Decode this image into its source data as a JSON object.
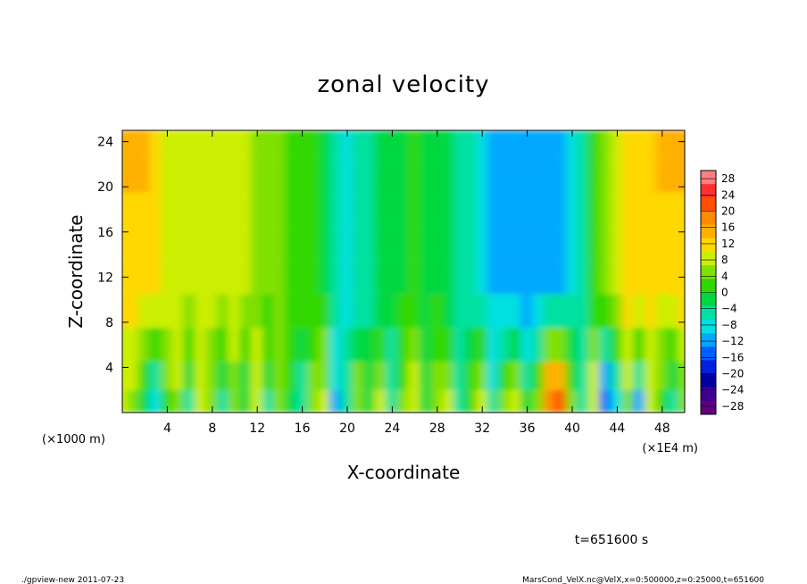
{
  "footer": {
    "left": "./gpview-new   2011-07-23",
    "right": "MarsCond_VelX.nc@VelX,x=0:500000,z=0:25000,t=651600"
  },
  "time_label": "t=651600 s",
  "chart_data": {
    "type": "heatmap",
    "title": "zonal velocity",
    "xlabel": "X-coordinate",
    "ylabel": "Z-coordinate",
    "x_unit_left": "(×1000 m)",
    "x_unit_right": "(×1E4 m)",
    "xlim": [
      0,
      50
    ],
    "ylim": [
      0,
      25
    ],
    "x_ticks": [
      4,
      8,
      12,
      16,
      20,
      24,
      28,
      32,
      36,
      40,
      44,
      48
    ],
    "y_ticks": [
      4,
      8,
      12,
      16,
      20,
      24
    ],
    "colorbar": {
      "levels": [
        28,
        24,
        20,
        16,
        12,
        8,
        4,
        0,
        -4,
        -8,
        -12,
        -16,
        -20,
        -24,
        -28
      ],
      "range": [
        -30,
        30
      ],
      "colors_high_to_low": [
        "#ff8080",
        "#ff3030",
        "#ff5000",
        "#ff8c00",
        "#ffb000",
        "#ffd800",
        "#ccee00",
        "#80e000",
        "#30d800",
        "#00d840",
        "#00e0a0",
        "#00e0e0",
        "#00a8ff",
        "#0060ff",
        "#0020e0",
        "#0000a0",
        "#400090",
        "#600080"
      ]
    },
    "x_samples": [
      0,
      1,
      2,
      3,
      4,
      5,
      6,
      7,
      8,
      9,
      10,
      11,
      12,
      13,
      14,
      15,
      16,
      17,
      18,
      19,
      20,
      21,
      22,
      23,
      24,
      25,
      26,
      27,
      28,
      29,
      30,
      31,
      32,
      33,
      34,
      35,
      36,
      37,
      38,
      39,
      40,
      41,
      42,
      43,
      44,
      45,
      46,
      47,
      48,
      49,
      50
    ],
    "z_levels": [
      1,
      3,
      6,
      9,
      12,
      15,
      18,
      21,
      24
    ],
    "z_profile_upper": [
      12,
      13,
      12,
      11,
      10,
      10,
      9,
      8,
      8,
      8,
      8,
      7,
      6,
      5,
      4,
      3,
      2,
      1,
      0,
      -4,
      -8,
      -6,
      -4,
      -2,
      -1,
      0,
      1,
      0,
      -1,
      -2,
      -4,
      -6,
      -8,
      -10,
      -11,
      -12,
      -12,
      -13,
      -12,
      -10,
      -8,
      -4,
      2,
      6,
      10,
      12,
      13,
      12,
      11,
      12,
      13
    ],
    "z_profile_lower": [
      8,
      6,
      -2,
      -8,
      2,
      6,
      -4,
      8,
      4,
      -6,
      6,
      -2,
      8,
      -4,
      6,
      0,
      -6,
      4,
      8,
      -10,
      -4,
      6,
      -2,
      8,
      -6,
      4,
      10,
      -2,
      6,
      8,
      -4,
      2,
      10,
      -6,
      4,
      8,
      -2,
      6,
      20,
      22,
      4,
      -6,
      8,
      -16,
      -8,
      6,
      -10,
      8,
      2,
      -6,
      4
    ]
  }
}
